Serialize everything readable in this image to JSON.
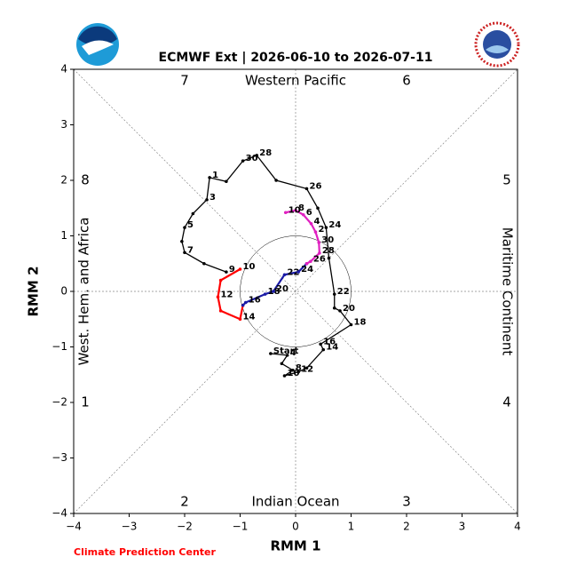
{
  "chart_data": {
    "type": "phase",
    "title": "ECMWF Ext | 2026-06-10 to 2026-07-11",
    "xlabel": "RMM 1",
    "ylabel": "RMM 2",
    "xlim": [
      -4,
      4
    ],
    "ylim": [
      -4,
      4
    ],
    "xticks": [
      {
        "value": -4,
        "label": "−4"
      },
      {
        "value": -3,
        "label": "−3"
      },
      {
        "value": -2,
        "label": "−2"
      },
      {
        "value": -1,
        "label": "−1"
      },
      0,
      1,
      2,
      3,
      4
    ],
    "yticks": [
      {
        "value": -4,
        "label": "−4"
      },
      {
        "value": -3,
        "label": "−3"
      },
      {
        "value": -2,
        "label": "−2"
      },
      {
        "value": -1,
        "label": "−1"
      },
      0,
      1,
      2,
      3,
      4
    ],
    "regions": {
      "top": "Western Pacific",
      "bottom": "Indian Ocean",
      "left": "West. Hem. and Africa",
      "right": "Maritime Continent"
    },
    "phases": [
      "1",
      "2",
      "3",
      "4",
      "5",
      "6",
      "7",
      "8"
    ],
    "credit": "Climate Prediction Center",
    "series": [
      {
        "color": "#000000",
        "x": [
          -0.45,
          -0.15,
          -0.25,
          -0.05,
          -0.2,
          0.05,
          0.2,
          0.5,
          0.45,
          1.0,
          0.8,
          0.7,
          0.7,
          0.6,
          0.55,
          0.4,
          0.2,
          -0.35,
          -0.7,
          -0.95,
          -1.25,
          -1.55,
          -1.6,
          -1.85,
          -2.0,
          -2.05,
          -2.0,
          -1.65,
          -1.25
        ],
        "y": [
          -1.12,
          -1.15,
          -1.3,
          -1.42,
          -1.52,
          -1.45,
          -1.38,
          -1.05,
          -0.95,
          -0.6,
          -0.35,
          -0.3,
          -0.05,
          0.6,
          1.15,
          1.5,
          1.85,
          2.0,
          2.45,
          2.35,
          1.98,
          2.05,
          1.65,
          1.4,
          1.15,
          0.9,
          0.7,
          0.5,
          0.35
        ],
        "point_labels": [
          "Start",
          "4",
          null,
          "8",
          "10",
          "12",
          null,
          "14",
          "16",
          "18",
          "20",
          null,
          "22",
          null,
          "24",
          null,
          "26",
          null,
          "28",
          "30",
          null,
          "1",
          "3",
          null,
          "5",
          null,
          "7",
          null,
          "9"
        ]
      },
      {
        "color": "#ff0000",
        "x": [
          -1.0,
          -1.35,
          -1.4,
          -1.35,
          -1.0,
          -0.95
        ],
        "y": [
          0.4,
          0.2,
          -0.1,
          -0.35,
          -0.5,
          -0.25
        ],
        "point_labels": [
          "10",
          null,
          "12",
          null,
          "14",
          null
        ]
      },
      {
        "color": "#1a1aa6",
        "x": [
          -0.95,
          -0.9,
          -0.55,
          -0.4,
          -0.2,
          0.05,
          0.2
        ],
        "y": [
          -0.25,
          -0.2,
          -0.05,
          0.0,
          0.3,
          0.35,
          0.5
        ],
        "point_labels": [
          null,
          "16",
          "18",
          "20",
          "22",
          "24",
          null
        ]
      },
      {
        "color": "#e020c0",
        "x": [
          0.2,
          0.27,
          0.43,
          0.42,
          0.36,
          0.28,
          0.14,
          0.0,
          -0.18
        ],
        "y": [
          0.5,
          0.54,
          0.69,
          0.88,
          1.07,
          1.22,
          1.38,
          1.46,
          1.42
        ],
        "point_labels": [
          null,
          "26",
          "28",
          "30",
          "2",
          "4",
          "6",
          "8",
          "10"
        ]
      }
    ]
  }
}
